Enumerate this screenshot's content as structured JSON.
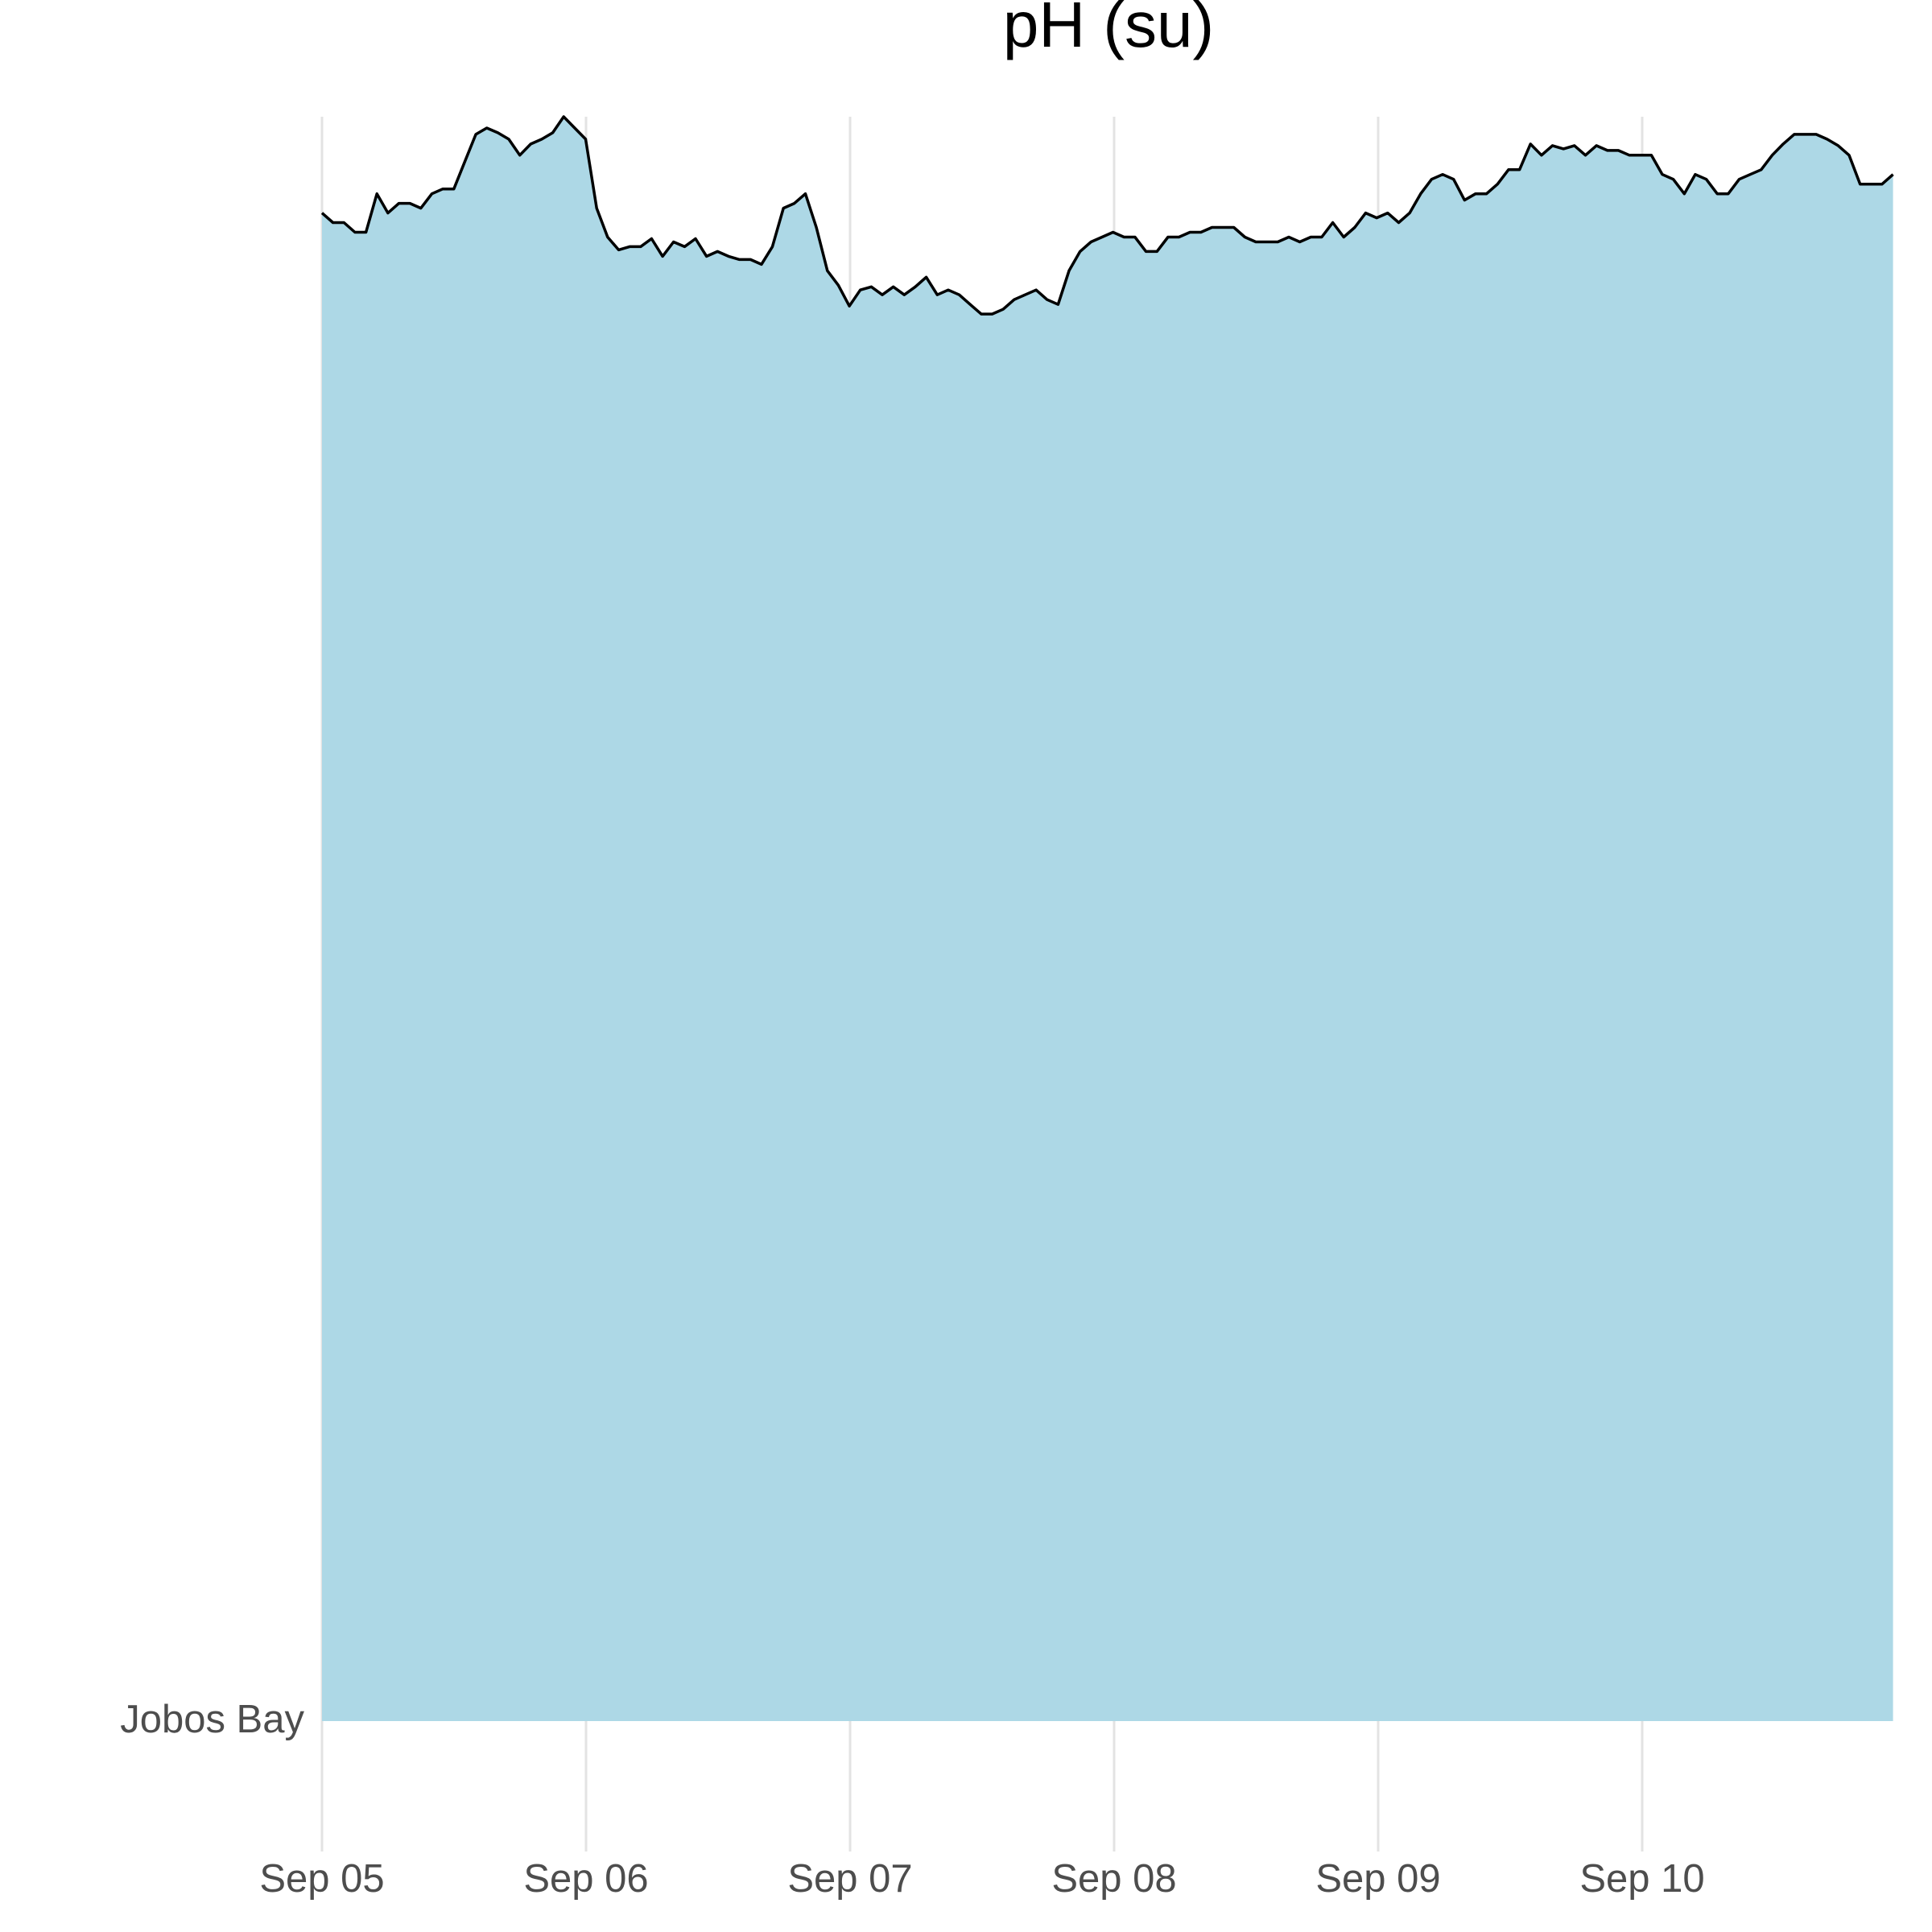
{
  "chart_data": {
    "type": "area",
    "title": "pH (su)",
    "xlabel": "",
    "ylabel": "",
    "y_category": "Jobos Bay",
    "x_tick_labels": [
      "Sep 05",
      "Sep 06",
      "Sep 07",
      "Sep 08",
      "Sep 09",
      "Sep 10"
    ],
    "x_range_days": [
      0,
      5.95
    ],
    "grid": {
      "vertical_major": true,
      "horizontal": false
    },
    "legend": "none",
    "colors": {
      "fill": "#add8e6",
      "line": "#000000",
      "grid": "#e3e3e3",
      "tick_text": "#4d4d4d"
    },
    "series": [
      {
        "relative_height": [
          0.94,
          0.934,
          0.934,
          0.928,
          0.928,
          0.952,
          0.94,
          0.946,
          0.946,
          0.943,
          0.952,
          0.955,
          0.955,
          0.972,
          0.989,
          0.993,
          0.99,
          0.986,
          0.976,
          0.983,
          0.986,
          0.99,
          1.0,
          0.993,
          0.986,
          0.943,
          0.925,
          0.917,
          0.919,
          0.919,
          0.924,
          0.913,
          0.922,
          0.919,
          0.924,
          0.913,
          0.916,
          0.913,
          0.911,
          0.911,
          0.908,
          0.919,
          0.943,
          0.946,
          0.952,
          0.931,
          0.904,
          0.895,
          0.882,
          0.892,
          0.894,
          0.889,
          0.894,
          0.889,
          0.894,
          0.9,
          0.889,
          0.892,
          0.889,
          0.883,
          0.877,
          0.877,
          0.88,
          0.886,
          0.889,
          0.892,
          0.886,
          0.883,
          0.904,
          0.916,
          0.922,
          0.925,
          0.928,
          0.925,
          0.925,
          0.916,
          0.916,
          0.925,
          0.925,
          0.928,
          0.928,
          0.931,
          0.931,
          0.931,
          0.925,
          0.922,
          0.922,
          0.922,
          0.925,
          0.922,
          0.925,
          0.925,
          0.934,
          0.925,
          0.931,
          0.94,
          0.937,
          0.94,
          0.934,
          0.94,
          0.952,
          0.961,
          0.964,
          0.961,
          0.948,
          0.952,
          0.952,
          0.958,
          0.967,
          0.967,
          0.983,
          0.976,
          0.982,
          0.98,
          0.982,
          0.976,
          0.982,
          0.979,
          0.979,
          0.976,
          0.976,
          0.976,
          0.964,
          0.961,
          0.952,
          0.964,
          0.961,
          0.952,
          0.952,
          0.961,
          0.964,
          0.967,
          0.976,
          0.983,
          0.989,
          0.989,
          0.989,
          0.986,
          0.982,
          0.976,
          0.958,
          0.958,
          0.958,
          0.964
        ]
      }
    ]
  }
}
